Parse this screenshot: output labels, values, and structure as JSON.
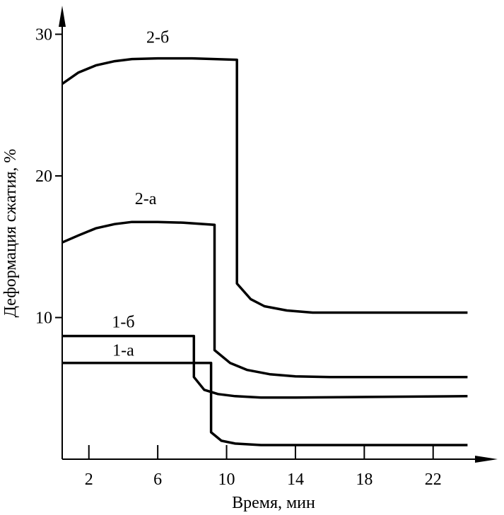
{
  "chart_data": {
    "type": "line",
    "title": "",
    "xlabel": "Время, мин",
    "ylabel": "Деформация сжатия, %",
    "x_ticks": [
      2,
      6,
      10,
      14,
      18,
      22
    ],
    "y_ticks": [
      10,
      20,
      30
    ],
    "xlim": [
      0.45,
      24
    ],
    "ylim": [
      0,
      30
    ],
    "grid": false,
    "legend": "none",
    "series": [
      {
        "name": "2-б",
        "points": [
          [
            0.45,
            26.5
          ],
          [
            1.4,
            27.3
          ],
          [
            2.4,
            27.8
          ],
          [
            3.5,
            28.1
          ],
          [
            4.5,
            28.25
          ],
          [
            6,
            28.3
          ],
          [
            8,
            28.3
          ],
          [
            10.6,
            28.2
          ],
          [
            10.6,
            12.4
          ],
          [
            11.4,
            11.3
          ],
          [
            12.2,
            10.8
          ],
          [
            13.5,
            10.5
          ],
          [
            15,
            10.35
          ],
          [
            24,
            10.35
          ]
        ],
        "label_at": [
          6,
          29.4
        ]
      },
      {
        "name": "2-а",
        "points": [
          [
            0.45,
            15.3
          ],
          [
            1.4,
            15.8
          ],
          [
            2.4,
            16.3
          ],
          [
            3.5,
            16.6
          ],
          [
            4.5,
            16.75
          ],
          [
            6,
            16.75
          ],
          [
            7.5,
            16.7
          ],
          [
            9.3,
            16.55
          ],
          [
            9.3,
            7.7
          ],
          [
            10.2,
            6.8
          ],
          [
            11.2,
            6.3
          ],
          [
            12.5,
            6.0
          ],
          [
            14,
            5.85
          ],
          [
            16,
            5.8
          ],
          [
            24,
            5.8
          ]
        ],
        "label_at": [
          5.3,
          18.0
        ]
      },
      {
        "name": "1-б",
        "points": [
          [
            0.45,
            8.7
          ],
          [
            8.1,
            8.7
          ],
          [
            8.1,
            5.8
          ],
          [
            8.7,
            4.9
          ],
          [
            9.5,
            4.6
          ],
          [
            10.5,
            4.45
          ],
          [
            12,
            4.35
          ],
          [
            14,
            4.35
          ],
          [
            24,
            4.45
          ]
        ],
        "label_at": [
          4.0,
          9.3
        ]
      },
      {
        "name": "1-а",
        "points": [
          [
            0.45,
            6.8
          ],
          [
            9.1,
            6.8
          ],
          [
            9.1,
            1.9
          ],
          [
            9.7,
            1.3
          ],
          [
            10.5,
            1.1
          ],
          [
            12,
            1.0
          ],
          [
            24,
            1.0
          ]
        ],
        "label_at": [
          4.0,
          7.3
        ]
      }
    ]
  }
}
